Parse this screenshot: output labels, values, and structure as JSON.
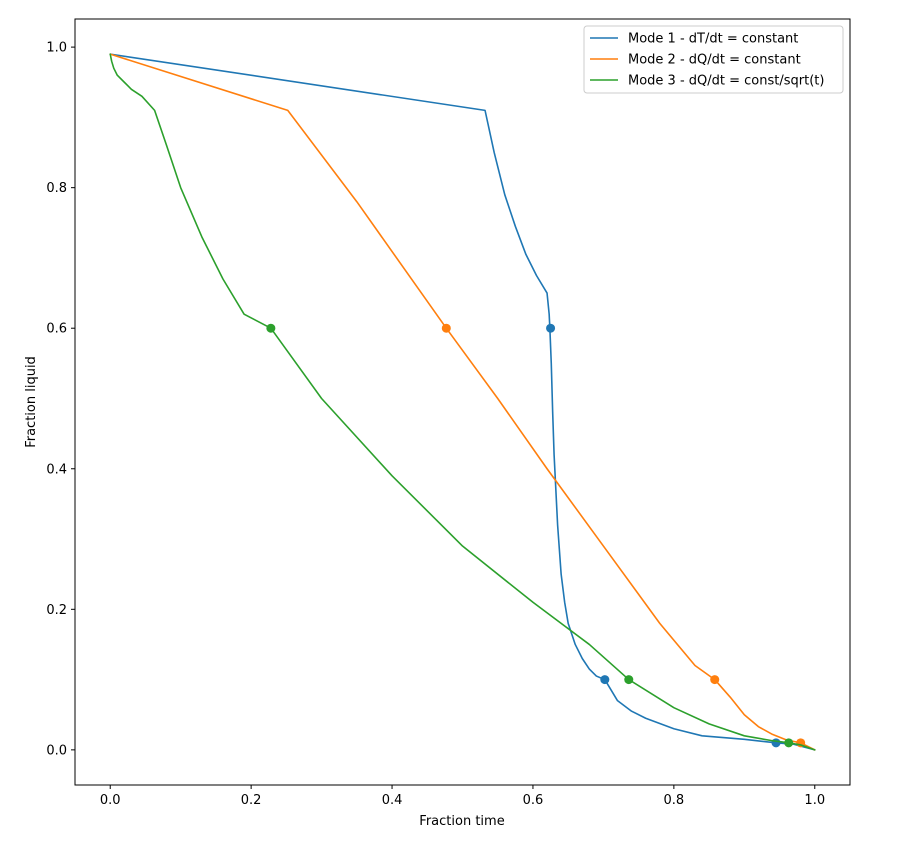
{
  "chart_data": {
    "type": "line",
    "xlabel": "Fraction time",
    "ylabel": "Fraction liquid",
    "xlim": [
      -0.05,
      1.05
    ],
    "ylim": [
      -0.05,
      1.04
    ],
    "xticks": [
      0.0,
      0.2,
      0.4,
      0.6,
      0.8,
      1.0
    ],
    "xtick_labels": [
      "0.0",
      "0.2",
      "0.4",
      "0.6",
      "0.8",
      "1.0"
    ],
    "yticks": [
      0.0,
      0.2,
      0.4,
      0.6,
      0.8,
      1.0
    ],
    "ytick_labels": [
      "0.0",
      "0.2",
      "0.4",
      "0.6",
      "0.8",
      "1.0"
    ],
    "grid": false,
    "legend_position": "top-right",
    "series": [
      {
        "name": "Mode 1 - dT/dt = constant",
        "color": "#1f77b4",
        "x": [
          0.0,
          0.532,
          0.545,
          0.56,
          0.575,
          0.59,
          0.605,
          0.62,
          0.623,
          0.624,
          0.626,
          0.628,
          0.63,
          0.632,
          0.635,
          0.64,
          0.645,
          0.65,
          0.66,
          0.67,
          0.68,
          0.69,
          0.702,
          0.72,
          0.74,
          0.76,
          0.8,
          0.84,
          0.9,
          0.945,
          0.97,
          1.0
        ],
        "y": [
          0.99,
          0.91,
          0.85,
          0.79,
          0.745,
          0.705,
          0.675,
          0.65,
          0.62,
          0.6,
          0.55,
          0.48,
          0.42,
          0.38,
          0.32,
          0.25,
          0.21,
          0.18,
          0.15,
          0.13,
          0.115,
          0.105,
          0.1,
          0.07,
          0.055,
          0.045,
          0.03,
          0.02,
          0.015,
          0.01,
          0.008,
          0.0
        ],
        "markers": [
          [
            0.625,
            0.6
          ],
          [
            0.702,
            0.1
          ],
          [
            0.945,
            0.01
          ]
        ]
      },
      {
        "name": "Mode 2 - dQ/dt = constant",
        "color": "#ff7f0e",
        "x": [
          0.0,
          0.252,
          0.35,
          0.477,
          0.55,
          0.62,
          0.7,
          0.78,
          0.83,
          0.858,
          0.88,
          0.9,
          0.92,
          0.94,
          0.96,
          0.98,
          1.0
        ],
        "y": [
          0.99,
          0.91,
          0.78,
          0.6,
          0.5,
          0.4,
          0.29,
          0.18,
          0.12,
          0.1,
          0.075,
          0.05,
          0.033,
          0.022,
          0.014,
          0.01,
          0.0
        ],
        "markers": [
          [
            0.477,
            0.6
          ],
          [
            0.858,
            0.1
          ],
          [
            0.98,
            0.01
          ]
        ]
      },
      {
        "name": "Mode 3 - dQ/dt = const/sqrt(t)",
        "color": "#2ca02c",
        "x": [
          0.0,
          0.002,
          0.005,
          0.01,
          0.02,
          0.03,
          0.045,
          0.063,
          0.08,
          0.1,
          0.13,
          0.16,
          0.19,
          0.228,
          0.3,
          0.4,
          0.5,
          0.6,
          0.68,
          0.736,
          0.8,
          0.85,
          0.9,
          0.94,
          0.963,
          0.98,
          1.0
        ],
        "y": [
          0.99,
          0.98,
          0.97,
          0.96,
          0.95,
          0.94,
          0.93,
          0.91,
          0.86,
          0.8,
          0.73,
          0.67,
          0.62,
          0.6,
          0.5,
          0.39,
          0.29,
          0.21,
          0.15,
          0.1,
          0.06,
          0.037,
          0.02,
          0.013,
          0.01,
          0.007,
          0.0
        ],
        "markers": [
          [
            0.228,
            0.6
          ],
          [
            0.736,
            0.1
          ],
          [
            0.963,
            0.01
          ]
        ]
      }
    ]
  }
}
